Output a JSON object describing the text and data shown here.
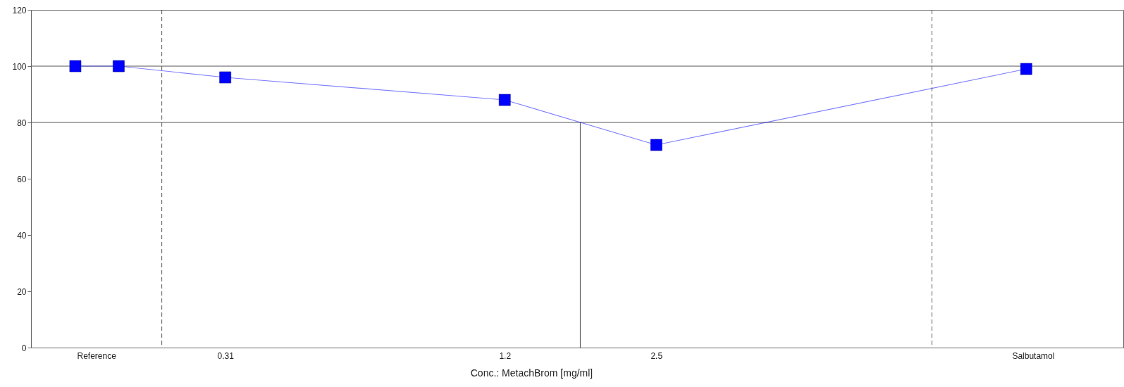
{
  "chart_data": {
    "type": "line",
    "xlabel": "Conc.: MetachBrom [mg/ml]",
    "log": "x",
    "x": [
      0.15,
      0.185,
      0.31,
      1.2,
      2.5,
      15
    ],
    "series": [
      {
        "color": "#0000ff",
        "values": [
          100,
          100,
          96,
          88,
          72,
          99
        ]
      }
    ],
    "xlim": [
      0.121,
      24
    ],
    "xticks": [
      {
        "value": 0.166,
        "label": "Reference"
      },
      0.31,
      1.2,
      2.5,
      {
        "value": 15.5,
        "label": "Salbutamol"
      }
    ],
    "ylim": [
      0,
      120
    ],
    "yticks": [
      0,
      20,
      40,
      60,
      80,
      100,
      120
    ],
    "grid": false,
    "marker": "square",
    "line_style": "solid",
    "ref_lines": [
      {
        "axis": "y",
        "value": 100,
        "color": "#555555"
      },
      {
        "axis": "y",
        "value": 80,
        "color": "#555555"
      },
      {
        "axis": "x",
        "value": 0.228,
        "color": "#555555",
        "line_style": "dashed"
      },
      {
        "axis": "x",
        "value": 9.5,
        "color": "#555555",
        "line_style": "dashed"
      },
      {
        "axis": "x",
        "value": 1.73,
        "color": "#555555",
        "line_style": "solid"
      }
    ]
  }
}
